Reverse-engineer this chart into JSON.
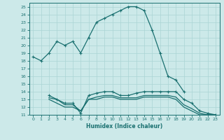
{
  "xlabel": "Humidex (Indice chaleur)",
  "bg_color": "#cce9e9",
  "grid_color": "#aad4d4",
  "line_color": "#1a7070",
  "xlim": [
    -0.5,
    23.5
  ],
  "ylim": [
    11,
    25.5
  ],
  "xticks": [
    0,
    1,
    2,
    3,
    4,
    5,
    6,
    7,
    8,
    9,
    10,
    11,
    12,
    13,
    14,
    15,
    16,
    17,
    18,
    19,
    20,
    21,
    22,
    23
  ],
  "yticks": [
    11,
    12,
    13,
    14,
    15,
    16,
    17,
    18,
    19,
    20,
    21,
    22,
    23,
    24,
    25
  ],
  "lines": [
    {
      "x": [
        0,
        1,
        2,
        3,
        4,
        5,
        6,
        7,
        8,
        9,
        10,
        11,
        12,
        13,
        14,
        15,
        16,
        17,
        18,
        19
      ],
      "y": [
        18.5,
        18.0,
        19.0,
        20.5,
        20.0,
        20.5,
        19.0,
        21.0,
        23.0,
        23.5,
        24.0,
        24.5,
        25.0,
        25.0,
        24.5,
        22.0,
        19.0,
        16.0,
        15.5,
        14.0
      ],
      "has_markers": true,
      "linewidth": 0.9
    },
    {
      "x": [
        2,
        3,
        4,
        5,
        6,
        7,
        8,
        9,
        10,
        11,
        12,
        13,
        14,
        15,
        16,
        17,
        18,
        19,
        20,
        21,
        22,
        23
      ],
      "y": [
        13.5,
        13.0,
        12.5,
        12.5,
        11.2,
        13.5,
        13.8,
        14.0,
        14.0,
        13.5,
        13.5,
        13.8,
        14.0,
        14.0,
        14.0,
        14.0,
        14.0,
        13.0,
        12.5,
        11.5,
        11.2,
        11.0
      ],
      "has_markers": true,
      "linewidth": 0.9
    },
    {
      "x": [
        2,
        3,
        4,
        5,
        6,
        7,
        8,
        9,
        10,
        11,
        12,
        13,
        14,
        15,
        16,
        17,
        18,
        19,
        20,
        21,
        22,
        23
      ],
      "y": [
        13.2,
        13.0,
        12.3,
        12.3,
        11.5,
        13.0,
        13.3,
        13.5,
        13.5,
        13.2,
        13.2,
        13.2,
        13.5,
        13.5,
        13.5,
        13.5,
        13.3,
        12.3,
        11.8,
        11.2,
        11.0,
        11.0
      ],
      "has_markers": false,
      "linewidth": 0.9
    },
    {
      "x": [
        2,
        3,
        4,
        5,
        6,
        7,
        8,
        9,
        10,
        11,
        12,
        13,
        14,
        15,
        16,
        17,
        18,
        19,
        20,
        21,
        22,
        23
      ],
      "y": [
        13.0,
        12.5,
        12.0,
        12.0,
        11.5,
        13.0,
        13.0,
        13.3,
        13.3,
        13.0,
        13.0,
        13.0,
        13.3,
        13.3,
        13.3,
        13.3,
        13.0,
        12.0,
        11.5,
        11.0,
        11.0,
        11.0
      ],
      "has_markers": false,
      "linewidth": 0.9
    }
  ]
}
